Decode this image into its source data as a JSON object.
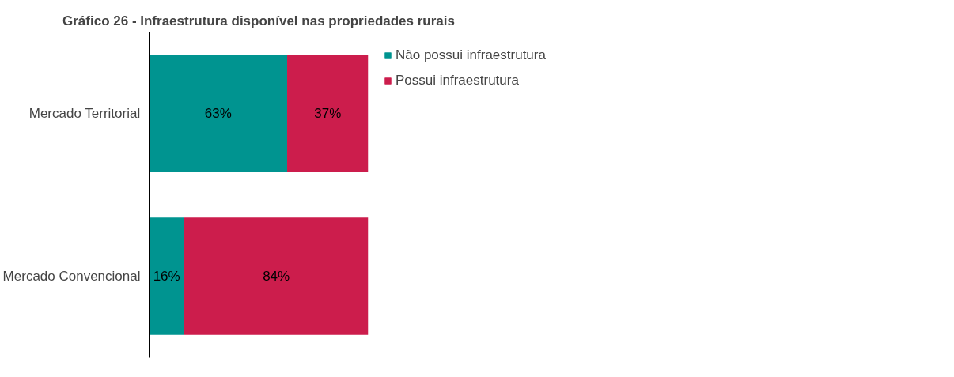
{
  "chart_data": {
    "type": "bar",
    "orientation": "horizontal",
    "stacked": true,
    "title": "Gráfico 26 - Infraestrutura disponível nas propriedades rurais",
    "categories": [
      "Mercado Territorial",
      "Mercado Convencional"
    ],
    "series": [
      {
        "name": "Não possui infraestrutura",
        "color": "#009490",
        "values": [
          63,
          16
        ],
        "value_labels": [
          "63%",
          "16%"
        ]
      },
      {
        "name": "Possui infraestrutura",
        "color": "#cc1d4c",
        "values": [
          37,
          84
        ],
        "value_labels": [
          "37%",
          "84%"
        ]
      }
    ],
    "legend": "top right",
    "grid": false
  }
}
